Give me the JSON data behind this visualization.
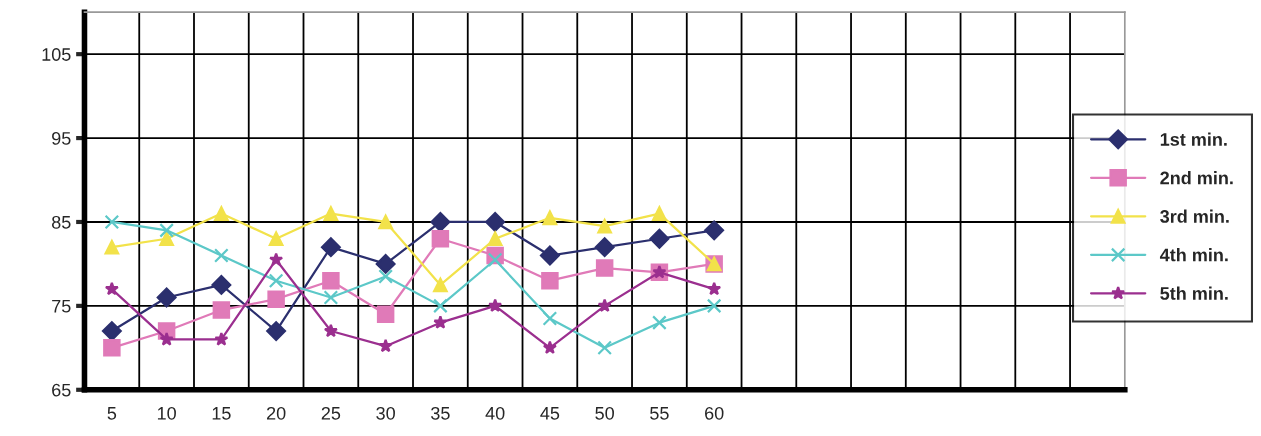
{
  "chart_data": {
    "type": "line",
    "categories": [
      "5",
      "10",
      "15",
      "20",
      "25",
      "30",
      "35",
      "40",
      "45",
      "50",
      "55",
      "60",
      null,
      null,
      null,
      null,
      null,
      null,
      null
    ],
    "series": [
      {
        "name": "1st min.",
        "color": "#2b2f6e",
        "marker": "diamond",
        "values": [
          72,
          76,
          77.5,
          72,
          82,
          80,
          85,
          85,
          81,
          82,
          83,
          84,
          null,
          null,
          null,
          null,
          null,
          null,
          null
        ]
      },
      {
        "name": "2nd min.",
        "color": "#e07ab8",
        "marker": "square",
        "values": [
          70,
          72,
          74.5,
          75.8,
          78,
          74,
          83,
          81,
          78,
          79.5,
          79,
          80,
          null,
          null,
          null,
          null,
          null,
          null,
          null
        ]
      },
      {
        "name": "3rd min.",
        "color": "#f2e24a",
        "marker": "triangle",
        "values": [
          82,
          83,
          86,
          83,
          86,
          85,
          77.5,
          83,
          85.5,
          84.5,
          86,
          80,
          null,
          null,
          null,
          null,
          null,
          null,
          null
        ]
      },
      {
        "name": "4th min.",
        "color": "#5cc8c8",
        "marker": "cross",
        "values": [
          85,
          84,
          81,
          78,
          76,
          78.5,
          75,
          80.5,
          73.5,
          70,
          73,
          75,
          null,
          null,
          null,
          null,
          null,
          null,
          null
        ]
      },
      {
        "name": "5th min.",
        "color": "#9b2f8f",
        "marker": "star",
        "values": [
          77,
          71,
          71,
          80.5,
          72,
          70.2,
          73,
          75,
          70,
          75,
          79,
          77,
          null,
          null,
          null,
          null,
          null,
          null,
          null
        ]
      }
    ],
    "ylim": [
      65,
      110
    ],
    "yticks": [
      65,
      75,
      85,
      95,
      105
    ],
    "grid": true,
    "legend": "right",
    "line_style": "solid"
  }
}
